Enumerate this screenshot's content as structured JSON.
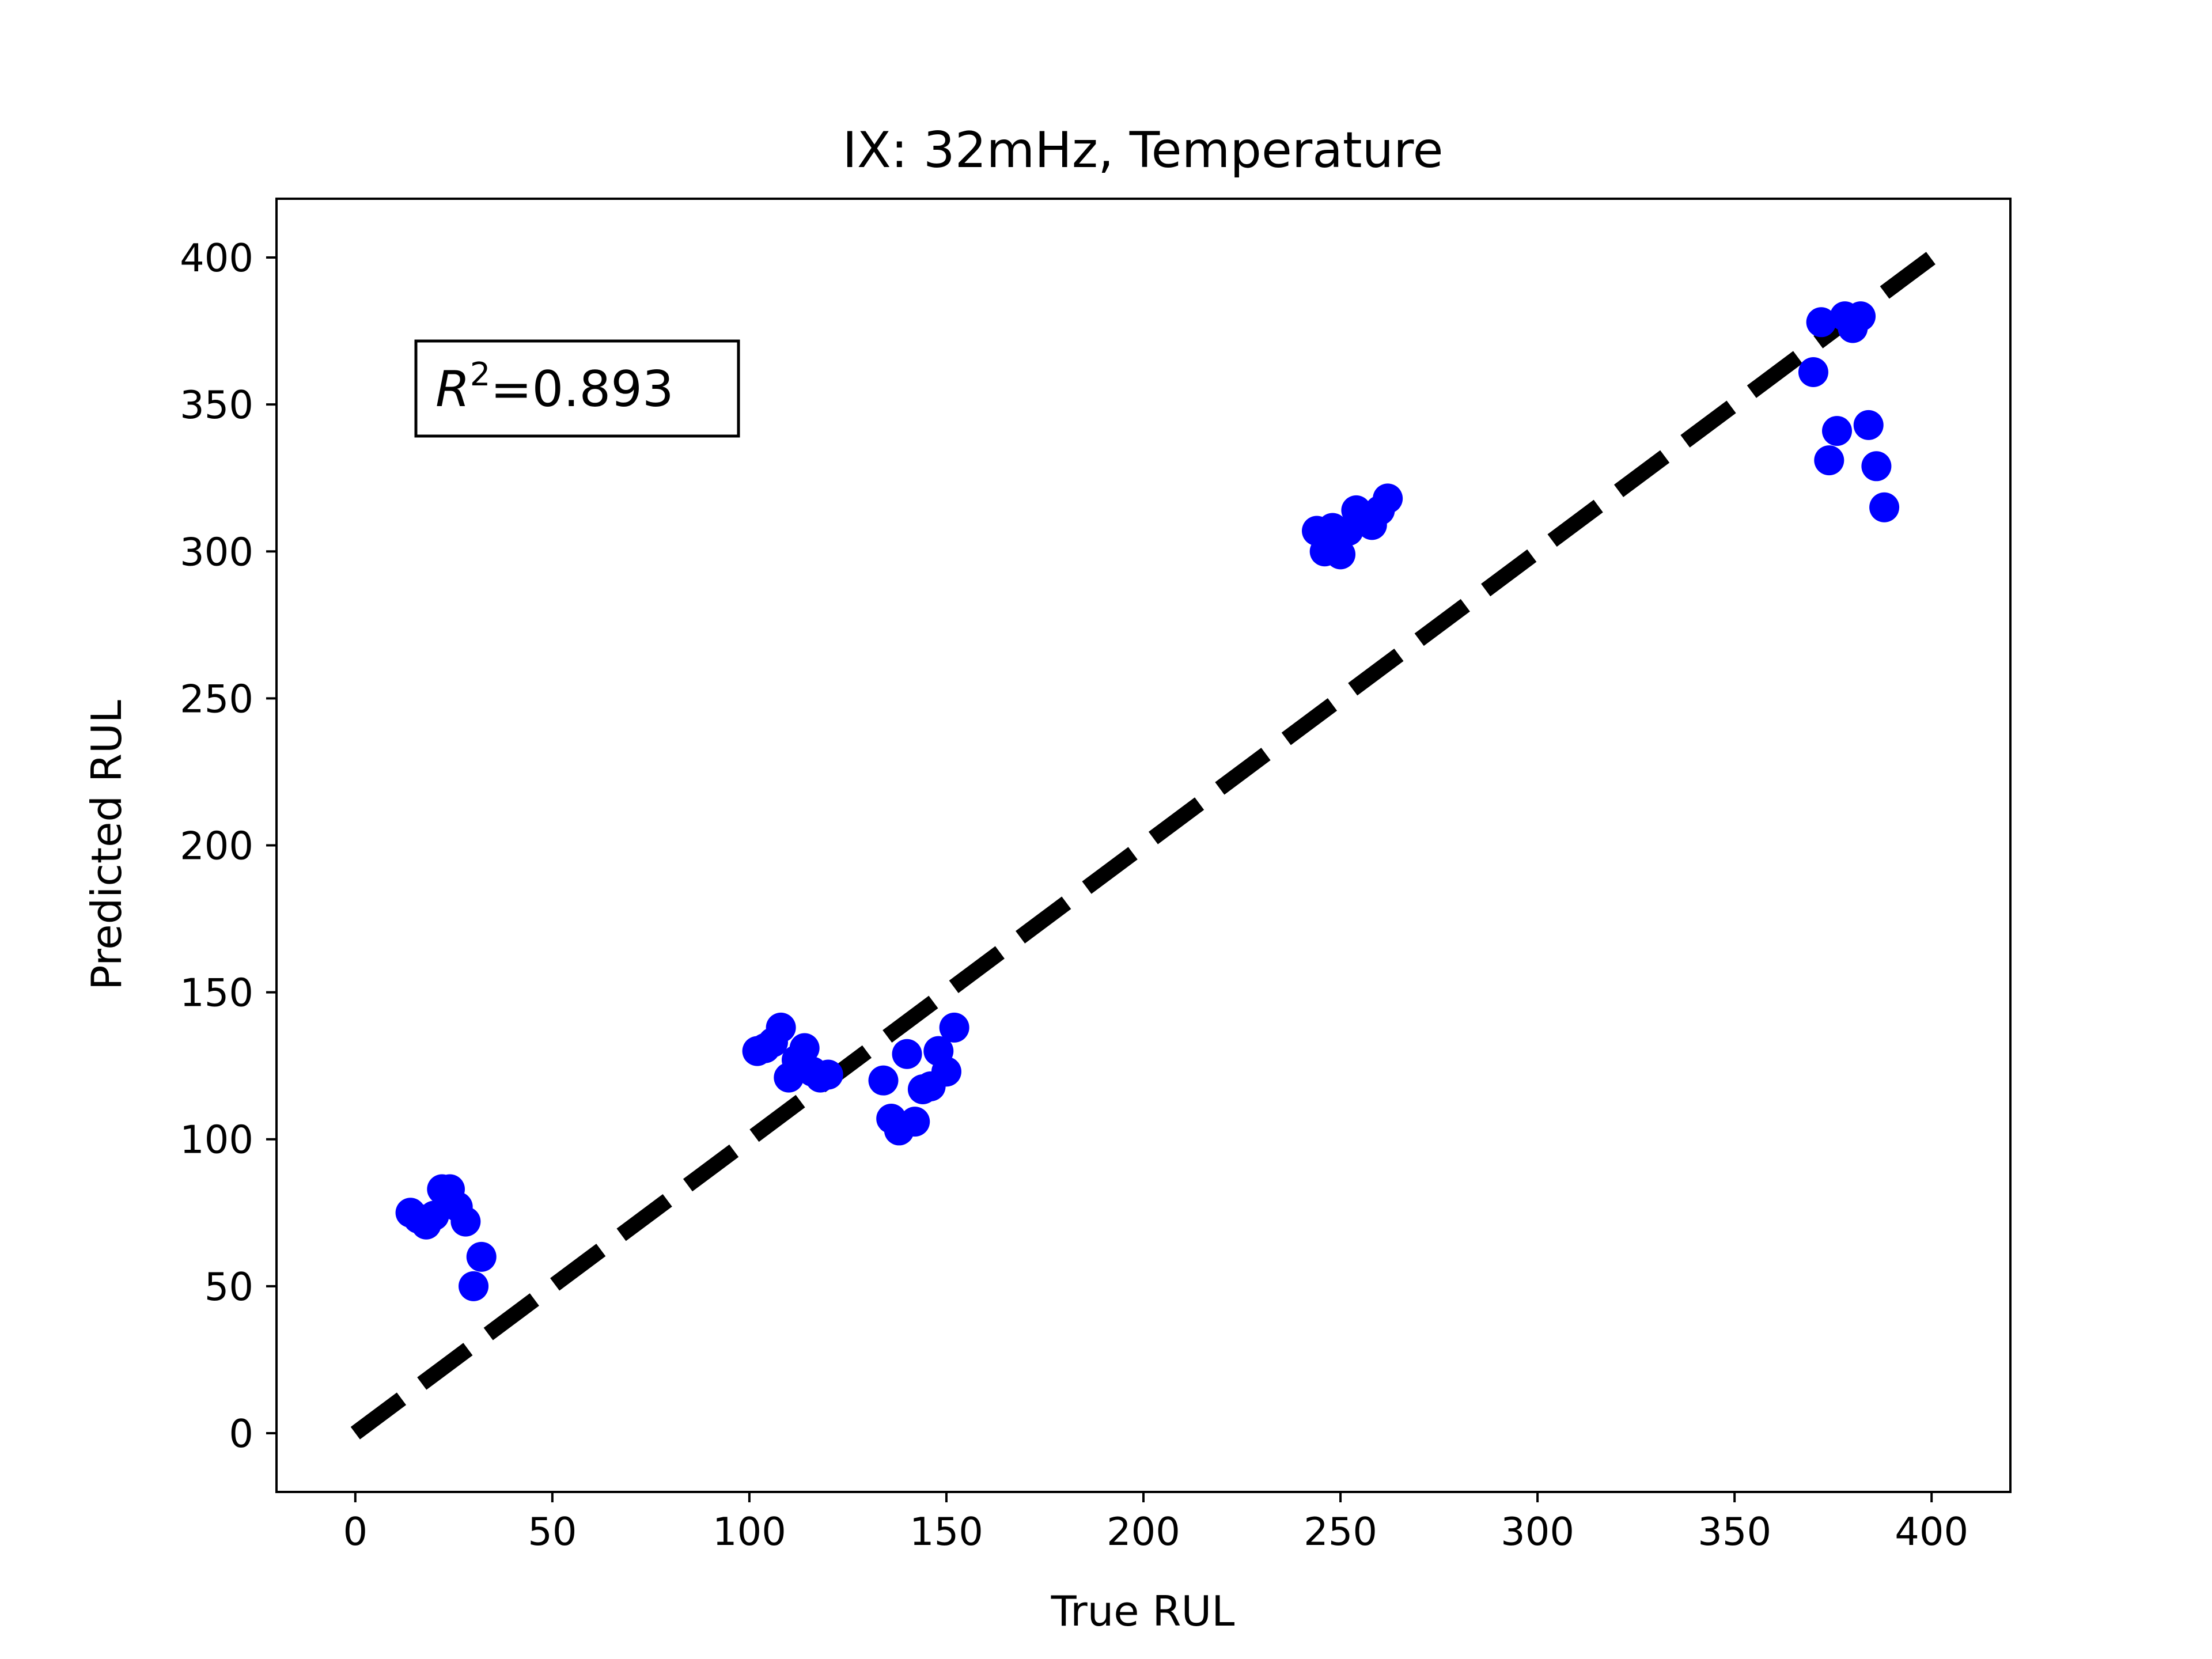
{
  "chart_data": {
    "type": "scatter",
    "title": "IX: 32mHz, Temperature",
    "xlabel": "True RUL",
    "ylabel": "Predicted RUL",
    "xlim": [
      -20,
      420
    ],
    "ylim": [
      -20,
      420
    ],
    "xticks": [
      0,
      50,
      100,
      150,
      200,
      250,
      300,
      350,
      400
    ],
    "yticks": [
      0,
      50,
      100,
      150,
      200,
      250,
      300,
      350,
      400
    ],
    "grid": false,
    "point_color": "#0000ff",
    "reference_line": {
      "style": "dashed",
      "color": "#000000",
      "from": [
        0,
        0
      ],
      "to": [
        400,
        400
      ]
    },
    "annotation": {
      "symbol": "R",
      "superscript": "2",
      "text": "=0.893",
      "placement": "top-left"
    },
    "points": [
      [
        14,
        75
      ],
      [
        16,
        73
      ],
      [
        18,
        71
      ],
      [
        20,
        74
      ],
      [
        22,
        83
      ],
      [
        24,
        83
      ],
      [
        26,
        77
      ],
      [
        28,
        72
      ],
      [
        30,
        50
      ],
      [
        32,
        60
      ],
      [
        102,
        130
      ],
      [
        104,
        131
      ],
      [
        106,
        133
      ],
      [
        108,
        138
      ],
      [
        110,
        121
      ],
      [
        112,
        127
      ],
      [
        114,
        131
      ],
      [
        116,
        123
      ],
      [
        118,
        121
      ],
      [
        120,
        122
      ],
      [
        134,
        120
      ],
      [
        136,
        107
      ],
      [
        138,
        103
      ],
      [
        140,
        129
      ],
      [
        142,
        106
      ],
      [
        144,
        117
      ],
      [
        146,
        118
      ],
      [
        148,
        130
      ],
      [
        150,
        123
      ],
      [
        152,
        138
      ],
      [
        244,
        307
      ],
      [
        246,
        300
      ],
      [
        248,
        308
      ],
      [
        250,
        299
      ],
      [
        252,
        307
      ],
      [
        254,
        314
      ],
      [
        256,
        311
      ],
      [
        258,
        309
      ],
      [
        260,
        314
      ],
      [
        262,
        318
      ],
      [
        370,
        361
      ],
      [
        372,
        378
      ],
      [
        374,
        331
      ],
      [
        376,
        341
      ],
      [
        378,
        380
      ],
      [
        380,
        376
      ],
      [
        382,
        380
      ],
      [
        384,
        343
      ],
      [
        386,
        329
      ],
      [
        388,
        315
      ]
    ]
  }
}
